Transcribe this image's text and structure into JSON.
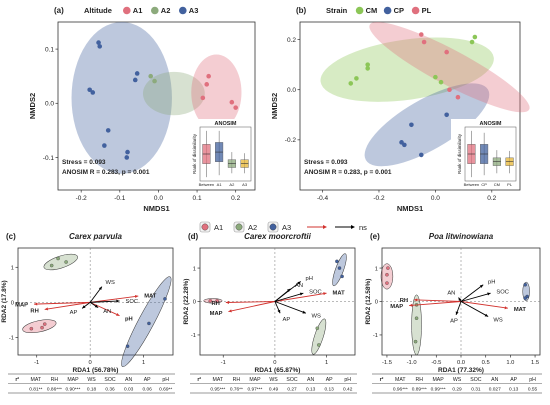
{
  "chart_data": [
    {
      "panel": "a",
      "type": "scatter",
      "legend_title": "Altitude",
      "groups": [
        {
          "name": "A1",
          "color": "#e0707e"
        },
        {
          "name": "A2",
          "color": "#8caa7c"
        },
        {
          "name": "A3",
          "color": "#42619e"
        }
      ],
      "xlabel": "NMDS1",
      "ylabel": "NMDS2",
      "x_ticks": [
        "-0.2",
        "-0.1",
        "0.0",
        "0.1",
        "0.2"
      ],
      "y_ticks": [
        "0.1",
        "0.0",
        "-0.1"
      ],
      "xlim": [
        -0.26,
        0.25
      ],
      "ylim": [
        -0.16,
        0.15
      ],
      "points": [
        {
          "g": 2,
          "x": -0.155,
          "y": 0.112
        },
        {
          "g": 2,
          "x": -0.152,
          "y": 0.105
        },
        {
          "g": 2,
          "x": -0.178,
          "y": 0.025
        },
        {
          "g": 2,
          "x": -0.17,
          "y": 0.02
        },
        {
          "g": 2,
          "x": -0.13,
          "y": -0.05
        },
        {
          "g": 2,
          "x": -0.14,
          "y": -0.078
        },
        {
          "g": 2,
          "x": -0.08,
          "y": -0.09
        },
        {
          "g": 2,
          "x": -0.082,
          "y": -0.1
        },
        {
          "g": 2,
          "x": -0.055,
          "y": 0.055
        },
        {
          "g": 2,
          "x": -0.06,
          "y": 0.043
        },
        {
          "g": 1,
          "x": -0.02,
          "y": 0.05
        },
        {
          "g": 1,
          "x": -0.01,
          "y": 0.041
        },
        {
          "g": 0,
          "x": 0.13,
          "y": 0.05
        },
        {
          "g": 0,
          "x": 0.125,
          "y": 0.035
        },
        {
          "g": 0,
          "x": 0.115,
          "y": 0.01
        },
        {
          "g": 0,
          "x": 0.19,
          "y": 0.002
        },
        {
          "g": 0,
          "x": 0.2,
          "y": -0.008
        }
      ],
      "ellipses": [
        {
          "g": 2,
          "cx": -0.095,
          "cy": 0.01,
          "rx": 0.13,
          "ry": 0.14
        },
        {
          "g": 1,
          "cx": 0.04,
          "cy": 0.018,
          "rx": 0.08,
          "ry": 0.04
        },
        {
          "g": 0,
          "cx": 0.15,
          "cy": 0.02,
          "rx": 0.065,
          "ry": 0.07
        }
      ],
      "annotations": [
        "Stress = 0.093",
        "ANOSIM R = 0.283, p = 0.001"
      ],
      "inset": {
        "title": "ANOSIM",
        "ylabel": "Rank of dissimilarity",
        "categories": [
          "Between",
          "A1",
          "A2",
          "A3"
        ],
        "colors": [
          "#e0707e",
          "#42619e",
          "#8caa7c",
          "#e5b534"
        ],
        "boxes": [
          {
            "min": 10,
            "q1": 45,
            "med": 70,
            "q3": 95,
            "max": 130
          },
          {
            "min": 15,
            "q1": 50,
            "med": 75,
            "q3": 100,
            "max": 130
          },
          {
            "min": 20,
            "q1": 35,
            "med": 45,
            "q3": 55,
            "max": 75
          },
          {
            "min": 20,
            "q1": 35,
            "med": 45,
            "q3": 55,
            "max": 72
          }
        ]
      }
    },
    {
      "panel": "b",
      "type": "scatter",
      "legend_title": "Strain",
      "groups": [
        {
          "name": "CM",
          "color": "#8cc657"
        },
        {
          "name": "CP",
          "color": "#42619e"
        },
        {
          "name": "PL",
          "color": "#e0707e"
        }
      ],
      "xlabel": "NMDS1",
      "ylabel": "NMDS2",
      "x_ticks": [
        "-0.4",
        "-0.2",
        "0.0",
        "0.2"
      ],
      "y_ticks": [
        "0.2",
        "0.0",
        "-0.2"
      ],
      "xlim": [
        -0.48,
        0.3
      ],
      "ylim": [
        -0.4,
        0.27
      ],
      "points": [
        {
          "g": 0,
          "x": -0.24,
          "y": 0.1
        },
        {
          "g": 0,
          "x": -0.24,
          "y": 0.085
        },
        {
          "g": 0,
          "x": -0.28,
          "y": 0.045
        },
        {
          "g": 0,
          "x": -0.3,
          "y": 0.025
        },
        {
          "g": 0,
          "x": 0.0,
          "y": 0.05
        },
        {
          "g": 0,
          "x": 0.02,
          "y": 0.03
        },
        {
          "g": 0,
          "x": 0.14,
          "y": 0.21
        },
        {
          "g": 0,
          "x": 0.13,
          "y": 0.19
        },
        {
          "g": 2,
          "x": -0.05,
          "y": 0.22
        },
        {
          "g": 2,
          "x": -0.04,
          "y": 0.19
        },
        {
          "g": 2,
          "x": 0.04,
          "y": 0.15
        },
        {
          "g": 2,
          "x": 0.05,
          "y": 0.0
        },
        {
          "g": 2,
          "x": 0.08,
          "y": -0.03
        },
        {
          "g": 1,
          "x": -0.12,
          "y": -0.21
        },
        {
          "g": 1,
          "x": -0.11,
          "y": -0.22
        },
        {
          "g": 1,
          "x": -0.085,
          "y": -0.14
        },
        {
          "g": 1,
          "x": -0.05,
          "y": -0.26
        },
        {
          "g": 1,
          "x": 0.04,
          "y": -0.1
        }
      ],
      "ellipses": [
        {
          "g": 0,
          "cx": -0.1,
          "cy": 0.08,
          "rx": 0.31,
          "ry": 0.12,
          "rot": -8
        },
        {
          "g": 1,
          "cx": -0.03,
          "cy": -0.14,
          "rx": 0.25,
          "ry": 0.1,
          "rot": -30
        },
        {
          "g": 2,
          "cx": 0.05,
          "cy": 0.09,
          "rx": 0.32,
          "ry": 0.07,
          "rot": 28
        }
      ],
      "annotations": [
        "Stress = 0.093",
        "ANOSIM R = 0.283, p = 0.001"
      ],
      "inset": {
        "title": "ANOSIM",
        "ylabel": "Rank of dissimilarity",
        "categories": [
          "Between",
          "CP",
          "CM",
          "PL"
        ],
        "colors": [
          "#e0707e",
          "#42619e",
          "#8caa7c",
          "#e5b534"
        ],
        "boxes": [
          {
            "min": 10,
            "q1": 45,
            "med": 70,
            "q3": 95,
            "max": 130
          },
          {
            "min": 15,
            "q1": 45,
            "med": 70,
            "q3": 95,
            "max": 125
          },
          {
            "min": 20,
            "q1": 40,
            "med": 50,
            "q3": 60,
            "max": 80
          },
          {
            "min": 20,
            "q1": 40,
            "med": 50,
            "q3": 60,
            "max": 78
          }
        ]
      }
    },
    {
      "panel": "c",
      "type": "scatter",
      "title": "Carex parvula",
      "xlabel": "RDA1 (56.78%)",
      "ylabel": "RDA2 (17.8%)",
      "x_ticks": [
        "-1",
        "0",
        "1"
      ],
      "y_ticks": [
        "1",
        "0",
        "-1"
      ],
      "xlim": [
        -1.35,
        1.55
      ],
      "ylim": [
        -1.5,
        1.55
      ],
      "groups": [
        {
          "name": "A1",
          "color": "#e0707e"
        },
        {
          "name": "A2",
          "color": "#8caa7c"
        },
        {
          "name": "A3",
          "color": "#42619e"
        }
      ],
      "ellipses": [
        {
          "g": 1,
          "cx": -0.55,
          "cy": 1.15,
          "rx": 0.33,
          "ry": 0.17,
          "rot": -18
        },
        {
          "g": 0,
          "cx": -0.95,
          "cy": -0.68,
          "rx": 0.32,
          "ry": 0.16,
          "rot": -12
        },
        {
          "g": 2,
          "cx": 1.05,
          "cy": -0.55,
          "rx": 0.95,
          "ry": 0.22,
          "rot": -62
        }
      ],
      "points": [
        {
          "g": 1,
          "x": -0.6,
          "y": 1.25
        },
        {
          "g": 1,
          "x": -0.45,
          "y": 1.15
        },
        {
          "g": 1,
          "x": -0.72,
          "y": 1.05
        },
        {
          "g": 0,
          "x": -0.85,
          "y": -0.62
        },
        {
          "g": 0,
          "x": -1.1,
          "y": -0.75
        },
        {
          "g": 0,
          "x": -0.9,
          "y": -0.72
        },
        {
          "g": 2,
          "x": 1.4,
          "y": 0.1
        },
        {
          "g": 2,
          "x": 0.7,
          "y": -1.25
        },
        {
          "g": 2,
          "x": 1.1,
          "y": -0.6
        }
      ],
      "vectors": [
        {
          "label": "MAP",
          "x": -1.05,
          "y": -0.05,
          "sig": true
        },
        {
          "label": "RH",
          "x": -0.85,
          "y": -0.2,
          "sig": true
        },
        {
          "label": "MAT",
          "x": 0.9,
          "y": 0.18,
          "sig": true
        },
        {
          "label": "pH",
          "x": 0.55,
          "y": -0.38,
          "sig": true
        },
        {
          "label": "WS",
          "x": 0.22,
          "y": 0.45,
          "sig": false
        },
        {
          "label": "SOC",
          "x": 0.55,
          "y": 0.04,
          "sig": false
        },
        {
          "label": "AN",
          "x": 0.15,
          "y": -0.15,
          "sig": false
        },
        {
          "label": "AP",
          "x": -0.15,
          "y": -0.17,
          "sig": false
        }
      ],
      "r2_table": {
        "header": [
          "r²",
          "MAT",
          "RH",
          "MAP",
          "WS",
          "SOC",
          "AN",
          "AP",
          "pH"
        ],
        "values": [
          "0.81**",
          "0.86***",
          "0.90***",
          "0.18",
          "0.36",
          "0.03",
          "0.06",
          "0.69**"
        ]
      }
    },
    {
      "panel": "d",
      "type": "scatter",
      "title": "Carex moorcroftii",
      "xlabel": "RDA1 (65.87%)",
      "ylabel": "RDA2 (22.28%)",
      "x_ticks": [
        "-1",
        "0",
        "1"
      ],
      "y_ticks": [
        "1",
        "0",
        "-1"
      ],
      "xlim": [
        -1.45,
        1.55
      ],
      "ylim": [
        -1.6,
        1.6
      ],
      "groups": [
        {
          "name": "A1",
          "color": "#e0707e"
        },
        {
          "name": "A2",
          "color": "#8caa7c"
        },
        {
          "name": "A3",
          "color": "#42619e"
        }
      ],
      "ellipses": [
        {
          "g": 0,
          "cx": -1.2,
          "cy": 0.02,
          "rx": 0.18,
          "ry": 0.07,
          "rot": 0
        },
        {
          "g": 2,
          "cx": 1.25,
          "cy": 0.95,
          "rx": 0.33,
          "ry": 0.12,
          "rot": -70
        },
        {
          "g": 1,
          "cx": 0.85,
          "cy": -1.05,
          "rx": 0.36,
          "ry": 0.13,
          "rot": -72
        }
      ],
      "points": [
        {
          "g": 0,
          "x": -1.25,
          "y": 0.02
        },
        {
          "g": 0,
          "x": -1.12,
          "y": 0.02
        },
        {
          "g": 2,
          "x": 1.2,
          "y": 1.2
        },
        {
          "g": 2,
          "x": 1.3,
          "y": 0.75
        },
        {
          "g": 2,
          "x": 1.25,
          "y": 1.0
        },
        {
          "g": 1,
          "x": 0.85,
          "y": -1.3
        },
        {
          "g": 1,
          "x": 0.82,
          "y": -0.8
        }
      ],
      "vectors": [
        {
          "label": "RH",
          "x": -0.95,
          "y": -0.03,
          "sig": true
        },
        {
          "label": "MAP",
          "x": -0.9,
          "y": -0.3,
          "sig": true
        },
        {
          "label": "MAT",
          "x": 1.0,
          "y": 0.25,
          "sig": true
        },
        {
          "label": "pH",
          "x": 0.5,
          "y": 0.6,
          "sig": false
        },
        {
          "label": "AN",
          "x": 0.3,
          "y": 0.38,
          "sig": false
        },
        {
          "label": "SOC",
          "x": 0.55,
          "y": 0.25,
          "sig": false
        },
        {
          "label": "WS",
          "x": 0.6,
          "y": -0.35,
          "sig": false
        },
        {
          "label": "AP",
          "x": 0.1,
          "y": -0.35,
          "sig": false
        }
      ],
      "r2_table": {
        "header": [
          "r²",
          "MAT",
          "RH",
          "MAP",
          "WS",
          "SOC",
          "AN",
          "AP",
          "pH"
        ],
        "values": [
          "0.95***",
          "0.76**",
          "0.97***",
          "0.49",
          "0.27",
          "0.13",
          "0.13",
          "0.42"
        ]
      }
    },
    {
      "panel": "e",
      "type": "scatter",
      "title": "Poa litwinowiana",
      "xlabel": "RDA1 (77.32%)",
      "ylabel": "RDA2 (12.58%)",
      "x_ticks": [
        "-1.5",
        "-1.0",
        "-0.5",
        "0.0",
        "0.5",
        "1.0",
        "1.5"
      ],
      "y_ticks": [
        "1",
        "0",
        "-1"
      ],
      "xlim": [
        -1.6,
        1.6
      ],
      "ylim": [
        -1.6,
        1.6
      ],
      "groups": [
        {
          "name": "A1",
          "color": "#e0707e"
        },
        {
          "name": "A2",
          "color": "#8caa7c"
        },
        {
          "name": "A3",
          "color": "#42619e"
        }
      ],
      "ellipses": [
        {
          "g": 0,
          "cx": -1.5,
          "cy": 0.75,
          "rx": 0.12,
          "ry": 0.38,
          "rot": 0
        },
        {
          "g": 1,
          "cx": -0.9,
          "cy": -0.7,
          "rx": 0.1,
          "ry": 0.9,
          "rot": 0
        },
        {
          "g": 2,
          "cx": 1.32,
          "cy": 0.3,
          "rx": 0.07,
          "ry": 0.28,
          "rot": 0
        }
      ],
      "points": [
        {
          "g": 0,
          "x": -1.5,
          "y": 0.55
        },
        {
          "g": 0,
          "x": -1.48,
          "y": 1.0
        },
        {
          "g": 0,
          "x": -1.5,
          "y": 0.8
        },
        {
          "g": 1,
          "x": -0.9,
          "y": -0.1
        },
        {
          "g": 1,
          "x": -0.92,
          "y": -1.2
        },
        {
          "g": 1,
          "x": -0.9,
          "y": -0.5
        },
        {
          "g": 2,
          "x": 1.3,
          "y": 0.5
        },
        {
          "g": 2,
          "x": 1.34,
          "y": 0.15
        },
        {
          "g": 2,
          "x": 1.3,
          "y": 0.1
        }
      ],
      "vectors": [
        {
          "label": "RH",
          "x": -0.95,
          "y": 0.05,
          "sig": true
        },
        {
          "label": "MAP",
          "x": -1.05,
          "y": -0.12,
          "sig": true
        },
        {
          "label": "MAT",
          "x": 0.95,
          "y": -0.2,
          "sig": true
        },
        {
          "label": "pH",
          "x": 0.45,
          "y": 0.5,
          "sig": false
        },
        {
          "label": "SOC",
          "x": 0.6,
          "y": 0.25,
          "sig": false
        },
        {
          "label": "AN",
          "x": -0.05,
          "y": 0.12,
          "sig": false
        },
        {
          "label": "WS",
          "x": 0.55,
          "y": -0.45,
          "sig": false
        },
        {
          "label": "AP",
          "x": -0.1,
          "y": -0.4,
          "sig": false
        }
      ],
      "r2_table": {
        "header": [
          "r²",
          "MAT",
          "RH",
          "MAP",
          "WS",
          "SOC",
          "AN",
          "AP",
          "pH"
        ],
        "values": [
          "0.96***",
          "0.89***",
          "0.99***",
          "0.29",
          "0.31",
          "0.027",
          "0.13",
          "0.55"
        ]
      }
    }
  ],
  "shared_legend": {
    "items": [
      {
        "label": "A1",
        "color": "#e0707e"
      },
      {
        "label": "A2",
        "color": "#8caa7c"
      },
      {
        "label": "A3",
        "color": "#42619e"
      }
    ],
    "arrow_label": "ns",
    "sig_color": "#d2332f",
    "ns_color": "#000000"
  }
}
